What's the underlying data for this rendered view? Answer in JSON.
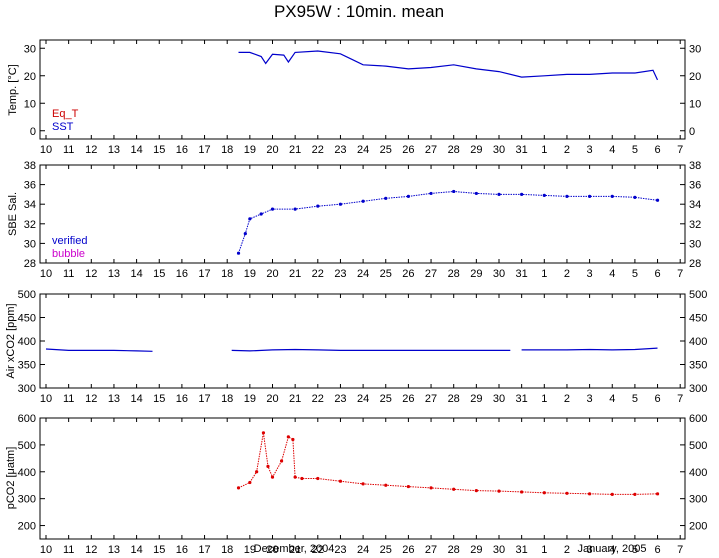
{
  "page_title": "PX95W : 10min. mean",
  "x_month_labels": [
    "December, 2004",
    "January, 2005"
  ],
  "x_tick_labels": [
    "10",
    "11",
    "12",
    "13",
    "14",
    "15",
    "16",
    "17",
    "18",
    "19",
    "20",
    "21",
    "22",
    "23",
    "24",
    "25",
    "26",
    "27",
    "28",
    "29",
    "30",
    "31",
    "1",
    "2",
    "3",
    "4",
    "5",
    "6",
    "7"
  ],
  "colors": {
    "sst": "#0000cc",
    "eq_t": "#cc0000",
    "verified": "#0000cc",
    "bubble": "#cc00cc",
    "pco2": "#dd0000"
  },
  "chart_data": [
    {
      "type": "line",
      "ylabel": "Temp. [°C]",
      "ylim": [
        -3,
        33
      ],
      "y_ticks": [
        0,
        10,
        20,
        30
      ],
      "legend": [
        "Eq_T",
        "SST"
      ],
      "legend_placement": "bottom-left",
      "series": [
        {
          "name": "SST",
          "color": "#0000cc",
          "x": [
            "Dec 18.5",
            "Dec 19",
            "Dec 19.5",
            "Dec 19.7",
            "Dec 20",
            "Dec 20.5",
            "Dec 20.7",
            "Dec 21",
            "Dec 22",
            "Dec 23",
            "Dec 23.5",
            "Dec 24",
            "Dec 25",
            "Dec 26",
            "Dec 27",
            "Dec 28",
            "Dec 29",
            "Dec 30",
            "Dec 31",
            "Jan 1",
            "Jan 2",
            "Jan 3",
            "Jan 4",
            "Jan 5",
            "Jan 5.8",
            "Jan 6"
          ],
          "values": [
            28.5,
            28.5,
            27,
            24.5,
            27.8,
            27.5,
            25,
            28.5,
            29,
            28,
            26,
            24,
            23.5,
            22.5,
            23,
            24,
            22.5,
            21.5,
            19.5,
            20,
            20.5,
            20.5,
            21,
            21,
            22,
            18.5
          ]
        }
      ]
    },
    {
      "type": "scatter",
      "ylabel": "SBE Sal.",
      "ylim": [
        28,
        38
      ],
      "y_ticks": [
        28,
        30,
        32,
        34,
        36,
        38
      ],
      "legend": [
        "verified",
        "bubble"
      ],
      "legend_placement": "bottom-left",
      "series": [
        {
          "name": "verified",
          "color": "#0000cc",
          "x": [
            "Dec 18.5",
            "Dec 18.8",
            "Dec 19",
            "Dec 19.5",
            "Dec 20",
            "Dec 21",
            "Dec 22",
            "Dec 23",
            "Dec 24",
            "Dec 25",
            "Dec 26",
            "Dec 27",
            "Dec 28",
            "Dec 29",
            "Dec 30",
            "Dec 31",
            "Jan 1",
            "Jan 2",
            "Jan 3",
            "Jan 4",
            "Jan 5",
            "Jan 6"
          ],
          "values": [
            29,
            31,
            32.5,
            33,
            33.5,
            33.5,
            33.8,
            34,
            34.3,
            34.6,
            34.8,
            35.1,
            35.3,
            35.1,
            35.0,
            35.0,
            34.9,
            34.8,
            34.8,
            34.8,
            34.7,
            34.4
          ]
        }
      ]
    },
    {
      "type": "line",
      "ylabel": "Air xCO2 [ppm]",
      "ylim": [
        300,
        500
      ],
      "y_ticks": [
        300,
        350,
        400,
        450,
        500
      ],
      "series": [
        {
          "name": "Air xCO2",
          "color": "#0000cc",
          "segments": [
            {
              "x": [
                "Dec 10",
                "Dec 11",
                "Dec 12",
                "Dec 13",
                "Dec 14",
                "Dec 14.7"
              ],
              "values": [
                383,
                380,
                380,
                380,
                379,
                378
              ]
            },
            {
              "x": [
                "Dec 18.2",
                "Dec 19",
                "Dec 20",
                "Dec 21",
                "Dec 22",
                "Dec 23",
                "Dec 24",
                "Dec 25",
                "Dec 26",
                "Dec 27",
                "Dec 28",
                "Dec 29",
                "Dec 30",
                "Dec 30.5"
              ],
              "values": [
                380,
                379,
                381,
                382,
                381,
                380,
                380,
                380,
                380,
                380,
                380,
                380,
                380,
                380
              ]
            },
            {
              "x": [
                "Dec 31",
                "Jan 1",
                "Jan 2",
                "Jan 3",
                "Jan 4",
                "Jan 5",
                "Jan 6"
              ],
              "values": [
                381,
                381,
                381,
                382,
                381,
                382,
                385
              ]
            }
          ]
        }
      ]
    },
    {
      "type": "scatter",
      "ylabel": "pCO2 [μatm]",
      "ylim": [
        150,
        600
      ],
      "y_ticks": [
        200,
        300,
        400,
        500,
        600
      ],
      "series": [
        {
          "name": "pCO2",
          "color": "#dd0000",
          "x": [
            "Dec 18.5",
            "Dec 19",
            "Dec 19.3",
            "Dec 19.6",
            "Dec 19.8",
            "Dec 20",
            "Dec 20.4",
            "Dec 20.7",
            "Dec 20.9",
            "Dec 21",
            "Dec 21.3",
            "Dec 22",
            "Dec 23",
            "Dec 24",
            "Dec 25",
            "Dec 26",
            "Dec 27",
            "Dec 28",
            "Dec 29",
            "Dec 30",
            "Dec 31",
            "Jan 1",
            "Jan 2",
            "Jan 3",
            "Jan 4",
            "Jan 5",
            "Jan 6"
          ],
          "values": [
            340,
            360,
            400,
            545,
            420,
            380,
            440,
            530,
            520,
            380,
            375,
            375,
            365,
            355,
            350,
            345,
            340,
            335,
            330,
            328,
            325,
            322,
            320,
            318,
            316,
            316,
            318
          ]
        }
      ]
    }
  ]
}
